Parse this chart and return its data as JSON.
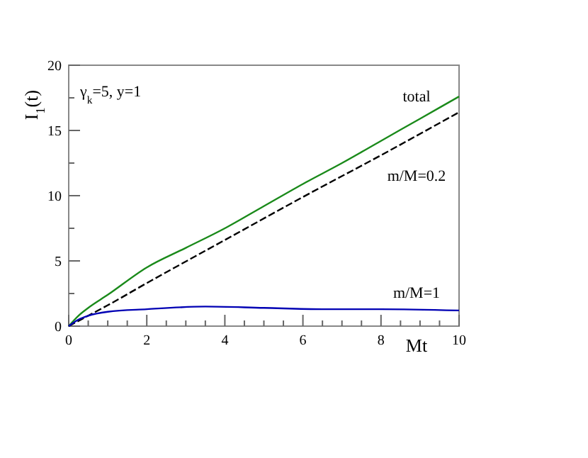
{
  "chart_data": {
    "type": "line",
    "xlabel": "Mt",
    "ylabel": "I$_{1}$(t)",
    "annotations": [
      "γ$_{k}$=5, y=1"
    ],
    "xlim": [
      0,
      10
    ],
    "ylim": [
      0,
      20
    ],
    "xticks": [
      0,
      {
        "value": 0.5,
        "label": null
      },
      {
        "value": 1,
        "label": null
      },
      {
        "value": 1.5,
        "label": null
      },
      2,
      {
        "value": 2.5,
        "label": null
      },
      {
        "value": 3,
        "label": null
      },
      {
        "value": 3.5,
        "label": null
      },
      4,
      {
        "value": 4.5,
        "label": null
      },
      {
        "value": 5,
        "label": null
      },
      {
        "value": 5.5,
        "label": null
      },
      6,
      {
        "value": 6.5,
        "label": null
      },
      {
        "value": 7,
        "label": null
      },
      {
        "value": 7.5,
        "label": null
      },
      8,
      {
        "value": 8.5,
        "label": null
      },
      {
        "value": 9,
        "label": null
      },
      {
        "value": 9.5,
        "label": null
      },
      10
    ],
    "yticks": [
      0,
      {
        "value": 2.5,
        "label": null
      },
      5,
      {
        "value": 7.5,
        "label": null
      },
      10,
      {
        "value": 12.5,
        "label": null
      },
      15,
      {
        "value": 17.5,
        "label": null
      },
      20
    ],
    "grid": false,
    "marker": "none",
    "series": [
      {
        "name": "total",
        "color": "#1a8a1a",
        "line_style": "solid",
        "x": [
          0,
          0.25,
          0.5,
          1,
          2,
          3,
          4,
          5,
          6,
          7,
          8,
          9,
          10
        ],
        "values": [
          0,
          0.8,
          1.4,
          2.4,
          4.5,
          6.0,
          7.5,
          9.2,
          10.9,
          12.5,
          14.2,
          15.9,
          17.6
        ]
      },
      {
        "name": "m/M=0.2",
        "color": "#000000",
        "line_style": "dashed",
        "x": [
          0,
          0.5,
          1,
          2,
          4,
          6,
          8,
          10
        ],
        "values": [
          0,
          0.8,
          1.6,
          3.3,
          6.6,
          9.9,
          13.1,
          16.4
        ]
      },
      {
        "name": "m/M=1",
        "color": "#0000b4",
        "line_style": "solid",
        "x": [
          0,
          0.25,
          0.5,
          1,
          2,
          3.5,
          5,
          6.5,
          8,
          10
        ],
        "values": [
          0,
          0.5,
          0.8,
          1.1,
          1.3,
          1.5,
          1.4,
          1.3,
          1.3,
          1.2
        ]
      }
    ]
  }
}
